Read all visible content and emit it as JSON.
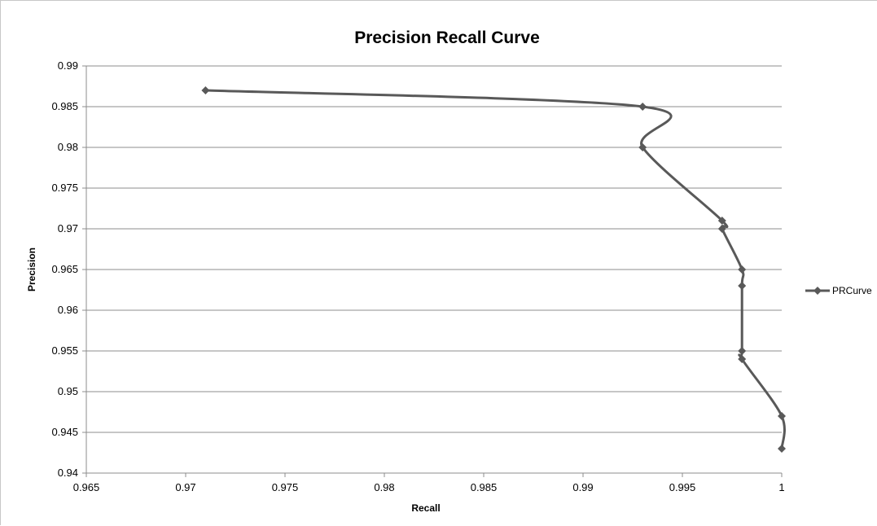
{
  "chart_data": {
    "type": "line",
    "title": "Precision Recall Curve",
    "xlabel": "Recall",
    "ylabel": "Precision",
    "xlim": [
      0.965,
      1
    ],
    "ylim": [
      0.94,
      0.99
    ],
    "x_ticks": [
      "0.965",
      "0.97",
      "0.975",
      "0.98",
      "0.985",
      "0.99",
      "0.995",
      "1"
    ],
    "y_ticks": [
      "0.94",
      "0.945",
      "0.95",
      "0.955",
      "0.96",
      "0.965",
      "0.97",
      "0.975",
      "0.98",
      "0.985",
      "0.99"
    ],
    "grid": "horizontal",
    "legend_position": "right",
    "series": [
      {
        "name": "PRCurve",
        "color": "#595959",
        "marker": "diamond",
        "smooth": true,
        "x": [
          0.971,
          0.993,
          0.993,
          0.997,
          0.997,
          0.998,
          0.998,
          0.998,
          0.998,
          1.0,
          1.0
        ],
        "y": [
          0.987,
          0.985,
          0.98,
          0.971,
          0.97,
          0.965,
          0.963,
          0.955,
          0.954,
          0.947,
          0.943
        ]
      }
    ]
  }
}
